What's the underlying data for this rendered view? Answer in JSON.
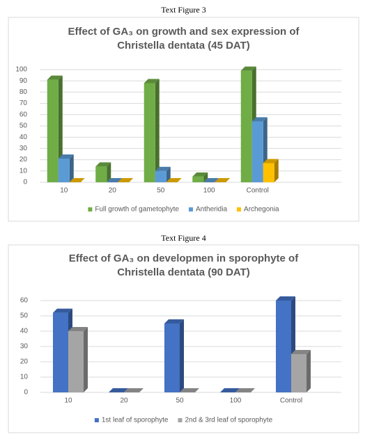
{
  "chart_data": [
    {
      "type": "bar",
      "caption": "Text Figure 3",
      "title": "Effect of GA₃ on growth and sex expression of Christella dentata (45 DAT)",
      "categories": [
        "10",
        "20",
        "50",
        "100",
        "Control"
      ],
      "series": [
        {
          "name": "Full growth of gametophyte",
          "color": "#70ad47",
          "values": [
            91,
            14,
            88,
            5,
            99
          ]
        },
        {
          "name": "Antheridia",
          "color": "#5b9bd5",
          "values": [
            21,
            0,
            10,
            0,
            54
          ]
        },
        {
          "name": "Archegonia",
          "color": "#ffc000",
          "values": [
            0,
            0,
            0,
            0,
            17
          ]
        }
      ],
      "ylim": [
        0,
        100
      ],
      "yticks": [
        0,
        10,
        20,
        30,
        40,
        50,
        60,
        70,
        80,
        90,
        100
      ],
      "grid": true,
      "legend": "bottom"
    },
    {
      "type": "bar",
      "caption": "Text Figure 4",
      "title": "Effect of GA₃ on developmen in sporophyte of Christella dentata (90 DAT)",
      "categories": [
        "10",
        "20",
        "50",
        "100",
        "Control"
      ],
      "series": [
        {
          "name": "1st leaf of sporophyte",
          "color": "#4472c4",
          "values": [
            52,
            0,
            45,
            0,
            60
          ]
        },
        {
          "name": "2nd & 3rd leaf of sporophyte",
          "color": "#a5a5a5",
          "values": [
            40,
            0,
            0,
            0,
            25
          ]
        }
      ],
      "ylim": [
        0,
        60
      ],
      "yticks": [
        0,
        10,
        20,
        30,
        40,
        50,
        60
      ],
      "grid": true,
      "legend": "bottom"
    }
  ]
}
